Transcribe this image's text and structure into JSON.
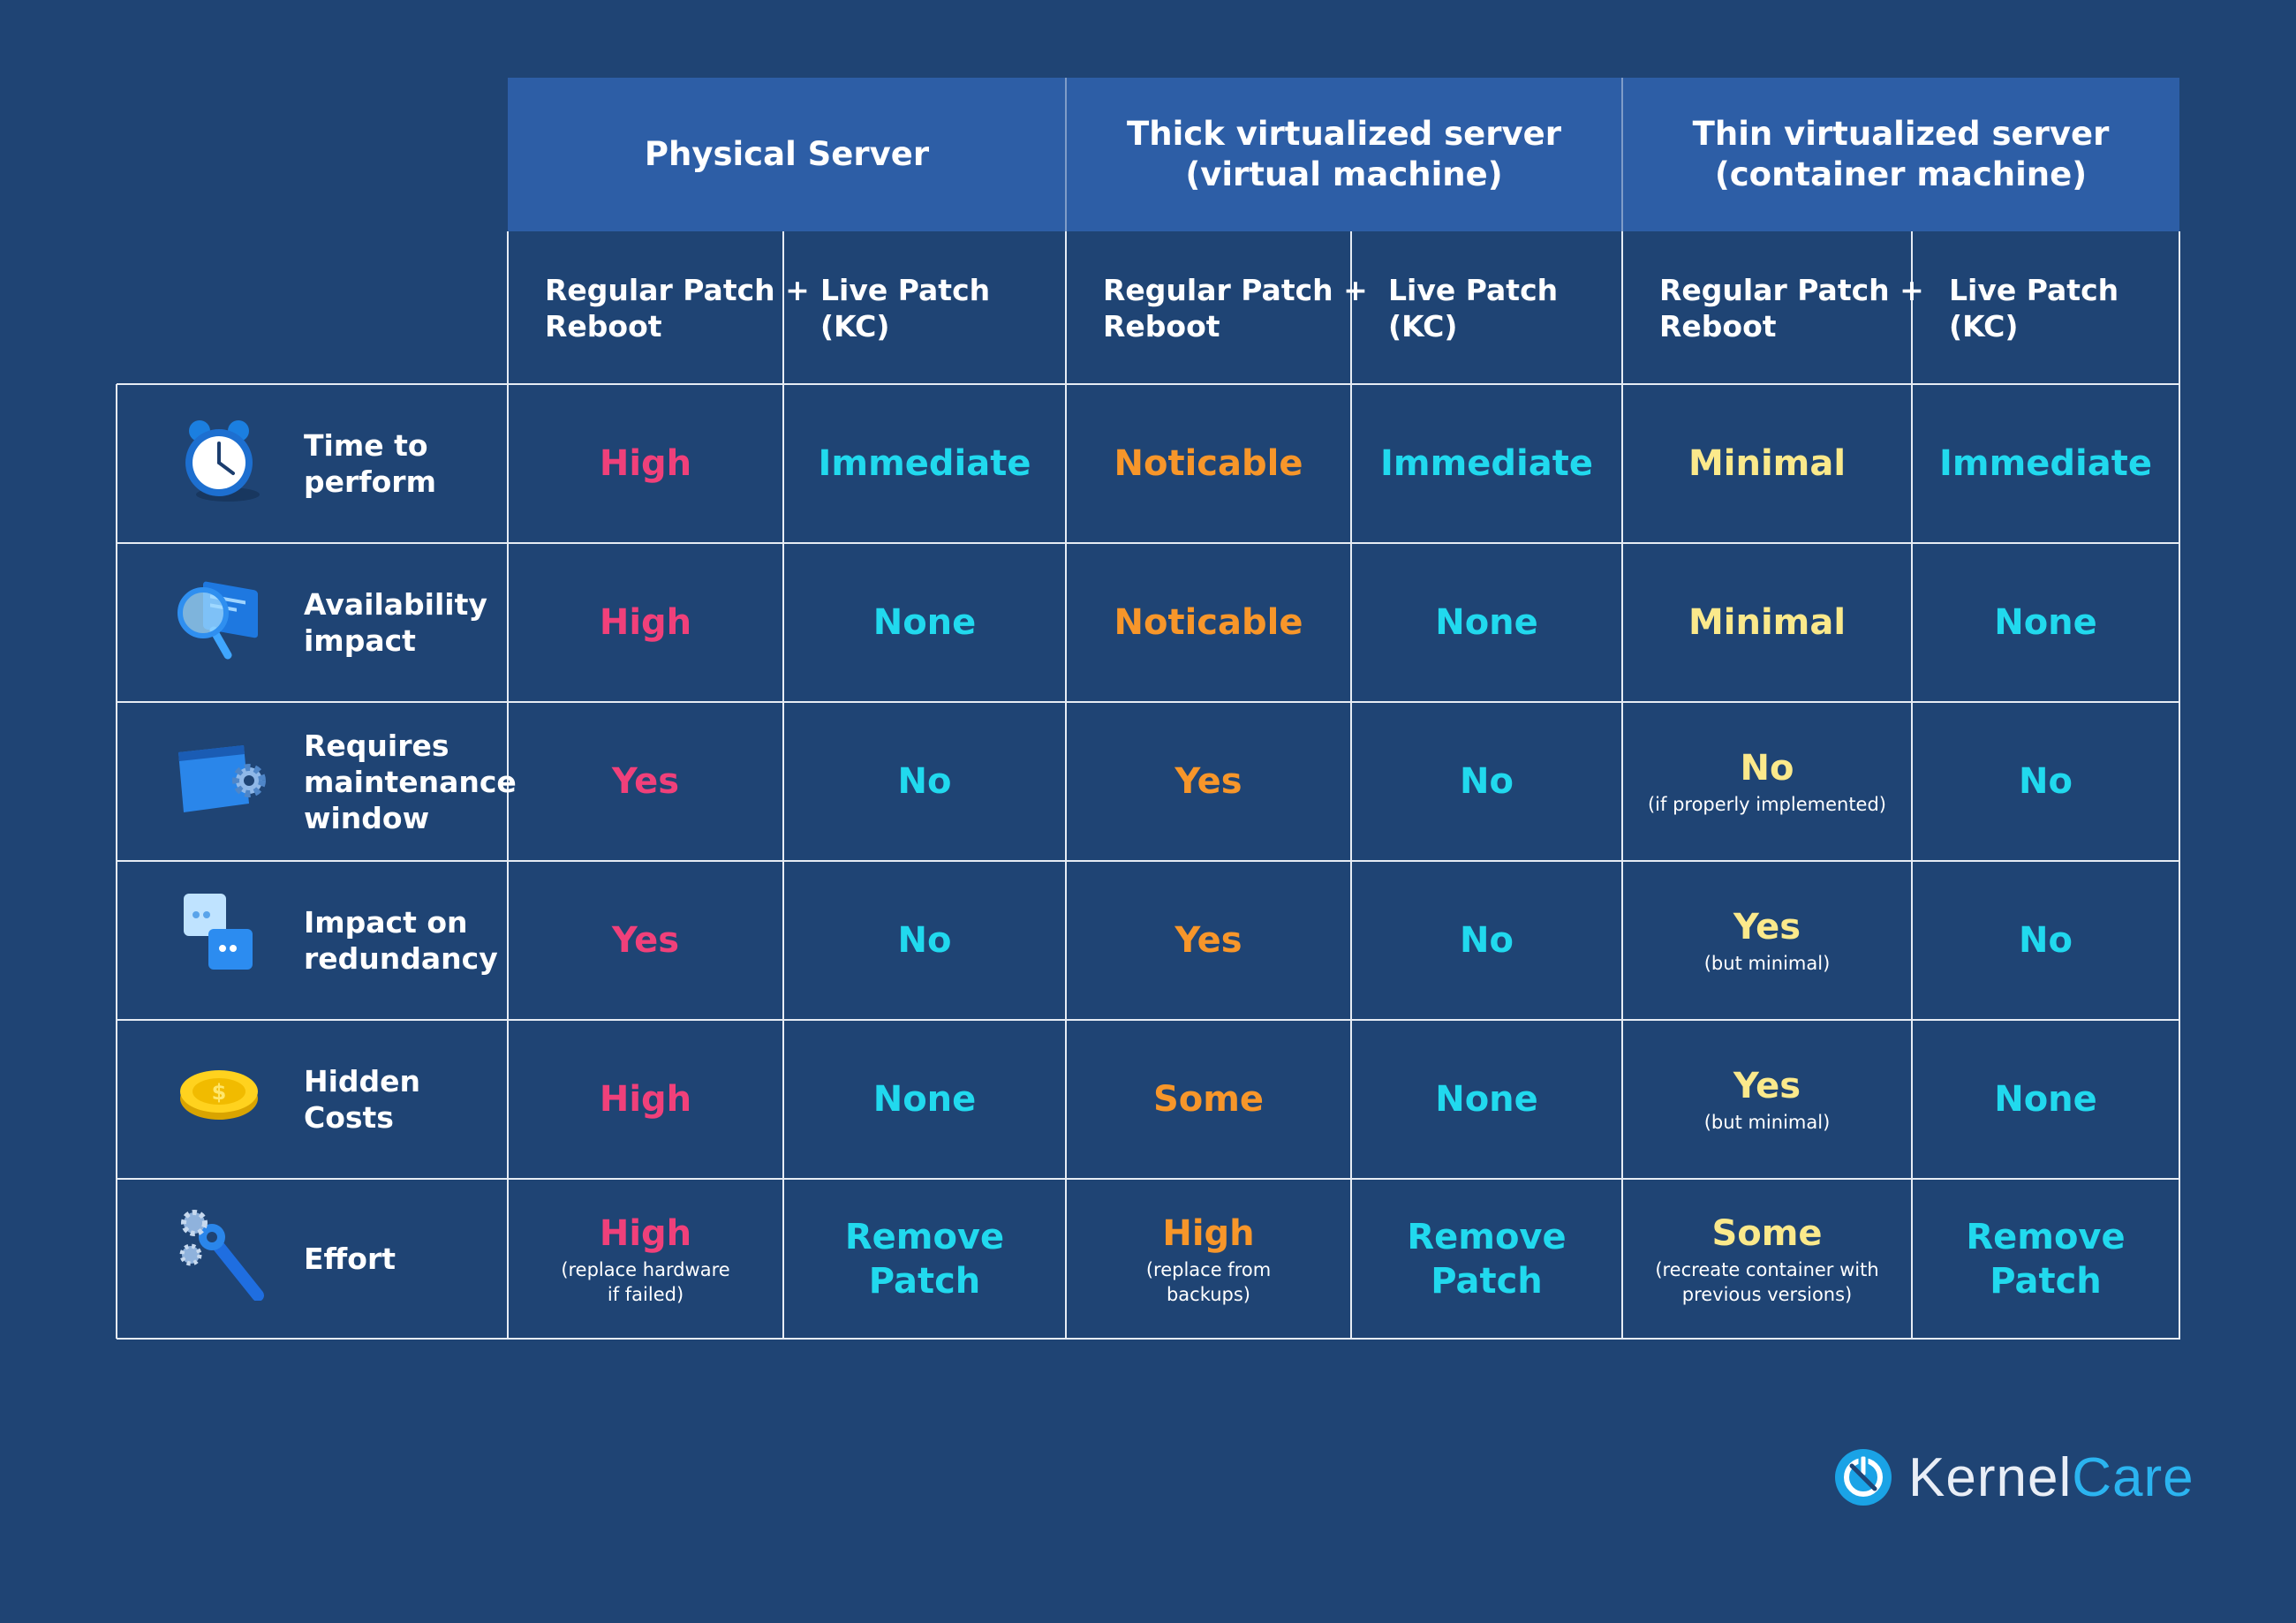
{
  "colors": {
    "background": "#1f4474",
    "header_bg": "#2d5ea6",
    "grid_line": "#e6ecf4",
    "high": "#f0407a",
    "cyan": "#21d9ee",
    "orange": "#f7962a",
    "yellow": "#fbe98b",
    "text": "#ffffff"
  },
  "groups": [
    {
      "label": "Physical Server"
    },
    {
      "label": "Thick virtualized server\n(virtual machine)"
    },
    {
      "label": "Thin virtualized server\n(container machine)"
    }
  ],
  "subheaders": [
    "Regular Patch +\nReboot",
    "Live Patch\n(KC)",
    "Regular Patch +\nReboot",
    "Live Patch\n(KC)",
    "Regular Patch +\nReboot",
    "Live Patch\n(KC)"
  ],
  "rows": [
    {
      "label": "Time to\nperform",
      "icon": "alarm-clock-icon",
      "cells": [
        {
          "value": "High",
          "color": "high",
          "note": ""
        },
        {
          "value": "Immediate",
          "color": "cyan",
          "note": ""
        },
        {
          "value": "Noticable",
          "color": "orange",
          "note": ""
        },
        {
          "value": "Immediate",
          "color": "cyan",
          "note": ""
        },
        {
          "value": "Minimal",
          "color": "yellow",
          "note": ""
        },
        {
          "value": "Immediate",
          "color": "cyan",
          "note": ""
        }
      ]
    },
    {
      "label": "Availability\nimpact",
      "icon": "magnifier-window-icon",
      "cells": [
        {
          "value": "High",
          "color": "high",
          "note": ""
        },
        {
          "value": "None",
          "color": "cyan",
          "note": ""
        },
        {
          "value": "Noticable",
          "color": "orange",
          "note": ""
        },
        {
          "value": "None",
          "color": "cyan",
          "note": ""
        },
        {
          "value": "Minimal",
          "color": "yellow",
          "note": ""
        },
        {
          "value": "None",
          "color": "cyan",
          "note": ""
        }
      ]
    },
    {
      "label": "Requires\nmaintenance\nwindow",
      "icon": "window-gear-icon",
      "cells": [
        {
          "value": "Yes",
          "color": "high",
          "note": ""
        },
        {
          "value": "No",
          "color": "cyan",
          "note": ""
        },
        {
          "value": "Yes",
          "color": "orange",
          "note": ""
        },
        {
          "value": "No",
          "color": "cyan",
          "note": ""
        },
        {
          "value": "No",
          "color": "yellow",
          "note": "(if properly implemented)"
        },
        {
          "value": "No",
          "color": "cyan",
          "note": ""
        }
      ]
    },
    {
      "label": "Impact on\nredundancy",
      "icon": "chat-bubbles-icon",
      "cells": [
        {
          "value": "Yes",
          "color": "high",
          "note": ""
        },
        {
          "value": "No",
          "color": "cyan",
          "note": ""
        },
        {
          "value": "Yes",
          "color": "orange",
          "note": ""
        },
        {
          "value": "No",
          "color": "cyan",
          "note": ""
        },
        {
          "value": "Yes",
          "color": "yellow",
          "note": "(but minimal)"
        },
        {
          "value": "No",
          "color": "cyan",
          "note": ""
        }
      ]
    },
    {
      "label": "Hidden\nCosts",
      "icon": "coin-icon",
      "cells": [
        {
          "value": "High",
          "color": "high",
          "note": ""
        },
        {
          "value": "None",
          "color": "cyan",
          "note": ""
        },
        {
          "value": "Some",
          "color": "orange",
          "note": ""
        },
        {
          "value": "None",
          "color": "cyan",
          "note": ""
        },
        {
          "value": "Yes",
          "color": "yellow",
          "note": "(but minimal)"
        },
        {
          "value": "None",
          "color": "cyan",
          "note": ""
        }
      ]
    },
    {
      "label": "Effort",
      "icon": "wrench-gears-icon",
      "cells": [
        {
          "value": "High",
          "color": "high",
          "note": "(replace hardware\nif failed)"
        },
        {
          "value": "Remove\nPatch",
          "color": "cyan",
          "note": ""
        },
        {
          "value": "High",
          "color": "orange",
          "note": "(replace from\nbackups)"
        },
        {
          "value": "Remove\nPatch",
          "color": "cyan",
          "note": ""
        },
        {
          "value": "Some",
          "color": "yellow",
          "note": "(recreate container with\nprevious versions)"
        },
        {
          "value": "Remove\nPatch",
          "color": "cyan",
          "note": ""
        }
      ]
    }
  ],
  "logo": {
    "part1": "Kernel",
    "part2": "Care",
    "icon": "kernelcare-logo-icon"
  }
}
